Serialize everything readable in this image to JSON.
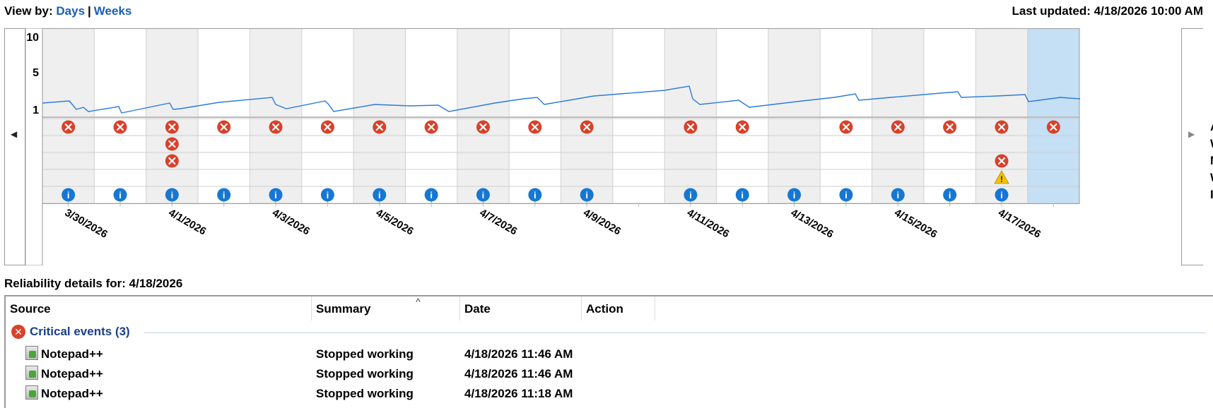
{
  "header": {
    "view_by_label": "View by:",
    "days_link": "Days",
    "separator": "|",
    "weeks_link": "Weeks",
    "last_updated": "Last updated: 4/18/2026 10:00 AM"
  },
  "chart": {
    "y_ticks": [
      "10",
      "5",
      "1"
    ],
    "date_labels": [
      "3/30/2026",
      "4/1/2026",
      "4/3/2026",
      "4/5/2026",
      "4/7/2026",
      "4/9/2026",
      "4/11/2026",
      "4/13/2026",
      "4/15/2026",
      "4/17/2026"
    ],
    "legend_rows": [
      "A",
      "W",
      "M",
      "W",
      "I"
    ],
    "selected_day_index": 19,
    "columns": [
      {
        "critical": [
          0
        ],
        "info": true
      },
      {
        "critical": [
          0
        ],
        "info": true
      },
      {
        "critical": [
          0,
          1,
          2
        ],
        "info": true
      },
      {
        "critical": [
          0
        ],
        "info": true
      },
      {
        "critical": [
          0
        ],
        "info": true
      },
      {
        "critical": [
          0
        ],
        "info": true
      },
      {
        "critical": [
          0
        ],
        "info": true
      },
      {
        "critical": [
          0
        ],
        "info": true
      },
      {
        "critical": [
          0
        ],
        "info": true
      },
      {
        "critical": [
          0
        ],
        "info": true
      },
      {
        "critical": [
          0
        ],
        "info": true
      },
      {
        "critical": [],
        "info": false
      },
      {
        "critical": [
          0
        ],
        "info": true
      },
      {
        "critical": [
          0
        ],
        "info": true
      },
      {
        "critical": [],
        "info": true
      },
      {
        "critical": [
          0
        ],
        "info": true
      },
      {
        "critical": [
          0
        ],
        "info": true
      },
      {
        "critical": [
          0
        ],
        "info": true
      },
      {
        "critical": [
          0,
          2
        ],
        "warning": true,
        "info": true
      },
      {
        "critical": [
          0
        ],
        "info": false
      }
    ],
    "colors": {
      "line": "#2b7bd6",
      "critical": "#d9412a",
      "info": "#1677d2",
      "warning": "#f2c200",
      "shaded_col": "#efefef",
      "selected_col": "#c5dff5"
    }
  },
  "details": {
    "title": "Reliability details for: 4/18/2026",
    "columns": [
      "Source",
      "Summary",
      "Date",
      "Action"
    ],
    "group": {
      "label": "Critical events (3)"
    },
    "rows": [
      {
        "source": "Notepad++",
        "summary": "Stopped working",
        "date": "4/18/2026 11:46 AM"
      },
      {
        "source": "Notepad++",
        "summary": "Stopped working",
        "date": "4/18/2026 11:46 AM"
      },
      {
        "source": "Notepad++",
        "summary": "Stopped working",
        "date": "4/18/2026 11:18 AM"
      }
    ]
  }
}
